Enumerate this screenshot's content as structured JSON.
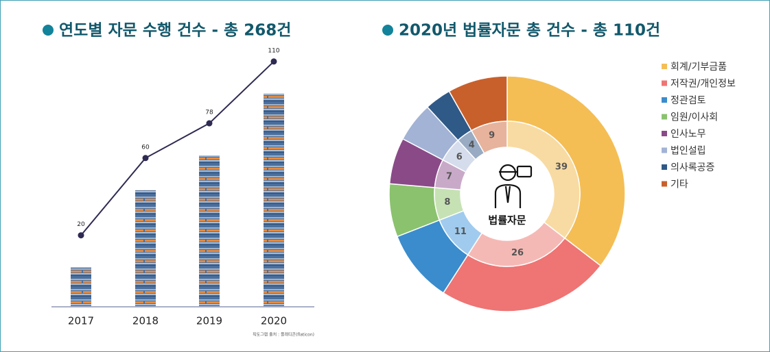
{
  "chart_data": [
    {
      "type": "bar-line",
      "title": "연도별 자문 수행 건수 - 총 268건",
      "categories": [
        "2017",
        "2018",
        "2019",
        "2020"
      ],
      "values": [
        20,
        60,
        78,
        110
      ],
      "line_color": "#2e2a52",
      "source": "픽토그램 출처 : 플래티콘(flaticon)"
    },
    {
      "type": "donut",
      "title": "2020년 법률자문 총 건수 - 총 110건",
      "center_label": "법률자문",
      "categories": [
        "회계/기부금품",
        "저작권/개인정보",
        "정관검토",
        "임원/이사회",
        "인사노무",
        "법인설립",
        "의사록공증",
        "기타"
      ],
      "values": [
        39,
        26,
        11,
        8,
        7,
        6,
        4,
        9
      ],
      "colors": [
        "#f4be55",
        "#ef7474",
        "#3a8ccd",
        "#8bc26e",
        "#8a4a88",
        "#a2b3d5",
        "#2f5987",
        "#c8602c"
      ],
      "light_colors": [
        "#f8dba2",
        "#f5b9b5",
        "#a0cbee",
        "#c6e2b5",
        "#c9a9c8",
        "#d5dcec",
        "#98abc3",
        "#e7b39d"
      ],
      "legend": "top-right"
    }
  ]
}
